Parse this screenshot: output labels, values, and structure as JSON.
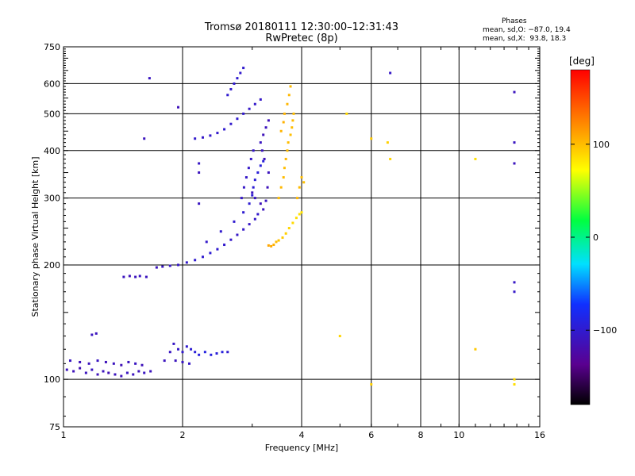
{
  "header": {
    "title_line1": "Tromsø 20180111 12:30:00–12:31:43",
    "title_line2": "RwPretec (8p)",
    "phases_label": "Phases",
    "phase_o": "mean, sd,O: −87.0, 19.4",
    "phase_x": "mean, sd,X:  93.8, 18.3"
  },
  "colorbar": {
    "unit": "[deg]",
    "ticks": [
      {
        "value": 100,
        "label": "100"
      },
      {
        "value": 0,
        "label": "0"
      },
      {
        "value": -100,
        "label": "−100"
      }
    ],
    "range": [
      -180,
      180
    ]
  },
  "chart_data": {
    "type": "scatter",
    "title": "Tromsø 20180111 12:30:00–12:31:43",
    "subtitle": "RwPretec (8p)",
    "xlabel": "Frequency [MHz]",
    "ylabel": "Stationary phase Virtual Height [km]",
    "x_scale": "log",
    "y_scale": "log",
    "xlim": [
      1,
      16
    ],
    "ylim": [
      75,
      750
    ],
    "x_ticks": [
      1,
      2,
      4,
      6,
      8,
      10,
      16
    ],
    "x_tick_labels": [
      "1",
      "2",
      "4",
      "6",
      "8",
      "10",
      "16"
    ],
    "y_ticks": [
      75,
      100,
      200,
      300,
      400,
      500,
      600,
      750
    ],
    "y_tick_labels": [
      "75",
      "100",
      "200",
      "300",
      "400",
      "500",
      "600",
      "750"
    ],
    "color_variable": "phase [deg]",
    "series": [
      {
        "name": "O",
        "points": [
          [
            1.02,
            106,
            -110
          ],
          [
            1.06,
            105,
            -112
          ],
          [
            1.1,
            107,
            -115
          ],
          [
            1.14,
            104,
            -110
          ],
          [
            1.18,
            106,
            -108
          ],
          [
            1.22,
            103,
            -112
          ],
          [
            1.26,
            105,
            -110
          ],
          [
            1.3,
            104,
            -115
          ],
          [
            1.35,
            103,
            -110
          ],
          [
            1.4,
            102,
            -112
          ],
          [
            1.45,
            104,
            -108
          ],
          [
            1.5,
            103,
            -110
          ],
          [
            1.55,
            105,
            -112
          ],
          [
            1.6,
            104,
            -108
          ],
          [
            1.66,
            105,
            -110
          ],
          [
            1.04,
            112,
            -108
          ],
          [
            1.1,
            111,
            -112
          ],
          [
            1.16,
            110,
            -110
          ],
          [
            1.22,
            112,
            -108
          ],
          [
            1.28,
            111,
            -112
          ],
          [
            1.34,
            110,
            -110
          ],
          [
            1.4,
            109,
            -114
          ],
          [
            1.46,
            111,
            -110
          ],
          [
            1.52,
            110,
            -108
          ],
          [
            1.58,
            109,
            -112
          ],
          [
            1.18,
            131,
            -108
          ],
          [
            1.21,
            132,
            -110
          ],
          [
            1.8,
            112,
            -110
          ],
          [
            1.86,
            118,
            -108
          ],
          [
            1.9,
            124,
            -106
          ],
          [
            1.95,
            120,
            -104
          ],
          [
            2.0,
            118,
            -102
          ],
          [
            2.05,
            122,
            -100
          ],
          [
            2.1,
            120,
            -98
          ],
          [
            2.15,
            118,
            -95
          ],
          [
            2.2,
            116,
            -92
          ],
          [
            2.28,
            118,
            -90
          ],
          [
            2.36,
            116,
            -92
          ],
          [
            2.44,
            117,
            -95
          ],
          [
            2.52,
            118,
            -92
          ],
          [
            2.6,
            118,
            -100
          ],
          [
            1.92,
            112,
            -110
          ],
          [
            2.0,
            111,
            -108
          ],
          [
            2.08,
            110,
            -106
          ],
          [
            1.42,
            186,
            -110
          ],
          [
            1.47,
            187,
            -112
          ],
          [
            1.52,
            186,
            -110
          ],
          [
            1.56,
            187,
            -108
          ],
          [
            1.62,
            186,
            -110
          ],
          [
            1.72,
            197,
            -110
          ],
          [
            1.78,
            198,
            -108
          ],
          [
            1.86,
            199,
            -106
          ],
          [
            1.95,
            200,
            -104
          ],
          [
            2.05,
            203,
            -102
          ],
          [
            2.15,
            206,
            -100
          ],
          [
            2.25,
            210,
            -100
          ],
          [
            2.35,
            215,
            -98
          ],
          [
            2.45,
            220,
            -100
          ],
          [
            2.55,
            226,
            -102
          ],
          [
            2.65,
            233,
            -104
          ],
          [
            2.75,
            240,
            -105
          ],
          [
            2.85,
            248,
            -104
          ],
          [
            2.95,
            256,
            -106
          ],
          [
            3.05,
            264,
            -104
          ],
          [
            3.1,
            272,
            -103
          ],
          [
            2.3,
            230,
            -103
          ],
          [
            2.5,
            245,
            -101
          ],
          [
            2.7,
            260,
            -100
          ],
          [
            2.85,
            275,
            -99
          ],
          [
            2.95,
            290,
            -98
          ],
          [
            3.0,
            305,
            -98
          ],
          [
            3.02,
            320,
            -97
          ],
          [
            3.05,
            335,
            -96
          ],
          [
            3.1,
            350,
            -95
          ],
          [
            3.15,
            365,
            -94
          ],
          [
            3.2,
            375,
            -93
          ],
          [
            2.82,
            300,
            -104
          ],
          [
            2.86,
            320,
            -105
          ],
          [
            2.9,
            340,
            -104
          ],
          [
            2.94,
            360,
            -104
          ],
          [
            2.98,
            380,
            -105
          ],
          [
            3.02,
            400,
            -104
          ],
          [
            2.15,
            430,
            -102
          ],
          [
            2.25,
            433,
            -104
          ],
          [
            2.35,
            438,
            -103
          ],
          [
            2.45,
            445,
            -102
          ],
          [
            2.55,
            455,
            -100
          ],
          [
            2.65,
            470,
            -102
          ],
          [
            2.75,
            485,
            -100
          ],
          [
            2.85,
            500,
            -102
          ],
          [
            2.95,
            515,
            -104
          ],
          [
            3.05,
            530,
            -103
          ],
          [
            3.15,
            545,
            -104
          ],
          [
            2.6,
            560,
            -100
          ],
          [
            2.65,
            580,
            -102
          ],
          [
            2.7,
            600,
            -101
          ],
          [
            2.75,
            620,
            -100
          ],
          [
            2.8,
            640,
            -102
          ],
          [
            2.85,
            660,
            -101
          ],
          [
            3.0,
            310,
            -110
          ],
          [
            3.05,
            300,
            -108
          ],
          [
            3.15,
            290,
            -112
          ],
          [
            3.2,
            280,
            -110
          ],
          [
            3.25,
            295,
            -108
          ],
          [
            3.28,
            320,
            -112
          ],
          [
            3.3,
            350,
            -110
          ],
          [
            3.22,
            380,
            -112
          ],
          [
            3.18,
            400,
            -110
          ],
          [
            3.15,
            420,
            -108
          ],
          [
            3.2,
            440,
            -112
          ],
          [
            3.25,
            460,
            -110
          ],
          [
            3.3,
            480,
            -112
          ],
          [
            2.2,
            290,
            -108
          ],
          [
            2.2,
            350,
            -110
          ],
          [
            2.2,
            370,
            -106
          ],
          [
            1.6,
            430,
            -110
          ],
          [
            1.65,
            620,
            -108
          ],
          [
            1.95,
            520,
            -112
          ],
          [
            6.7,
            640,
            -105
          ],
          [
            13.8,
            570,
            -110
          ],
          [
            13.8,
            420,
            -108
          ],
          [
            13.8,
            370,
            -110
          ],
          [
            13.8,
            180,
            -106
          ],
          [
            13.8,
            170,
            -104
          ]
        ]
      },
      {
        "name": "X",
        "points": [
          [
            3.45,
            230,
            100
          ],
          [
            3.5,
            232,
            98
          ],
          [
            3.58,
            236,
            95
          ],
          [
            3.65,
            242,
            92
          ],
          [
            3.72,
            250,
            90
          ],
          [
            3.8,
            258,
            88
          ],
          [
            3.88,
            266,
            86
          ],
          [
            3.95,
            272,
            85
          ],
          [
            4.0,
            275,
            84
          ],
          [
            3.5,
            300,
            100
          ],
          [
            3.55,
            320,
            102
          ],
          [
            3.6,
            340,
            101
          ],
          [
            3.62,
            360,
            100
          ],
          [
            3.65,
            380,
            102
          ],
          [
            3.68,
            400,
            101
          ],
          [
            3.7,
            420,
            100
          ],
          [
            3.75,
            440,
            99
          ],
          [
            3.78,
            460,
            100
          ],
          [
            3.8,
            480,
            101
          ],
          [
            3.82,
            500,
            100
          ],
          [
            3.55,
            450,
            104
          ],
          [
            3.6,
            475,
            105
          ],
          [
            3.62,
            500,
            104
          ],
          [
            3.68,
            530,
            103
          ],
          [
            3.72,
            560,
            102
          ],
          [
            3.75,
            590,
            101
          ],
          [
            3.3,
            225,
            110
          ],
          [
            3.35,
            224,
            108
          ],
          [
            3.4,
            226,
            106
          ],
          [
            3.9,
            300,
            102
          ],
          [
            3.95,
            320,
            101
          ],
          [
            4.0,
            340,
            100
          ],
          [
            4.05,
            330,
            99
          ],
          [
            5.2,
            500,
            88
          ],
          [
            6.0,
            430,
            95
          ],
          [
            6.6,
            420,
            92
          ],
          [
            6.7,
            380,
            90
          ],
          [
            11,
            380,
            85
          ],
          [
            11,
            120,
            95
          ],
          [
            13.8,
            100,
            88
          ],
          [
            13.8,
            97,
            86
          ],
          [
            6.0,
            97,
            92
          ],
          [
            5.0,
            130,
            90
          ]
        ]
      }
    ]
  }
}
